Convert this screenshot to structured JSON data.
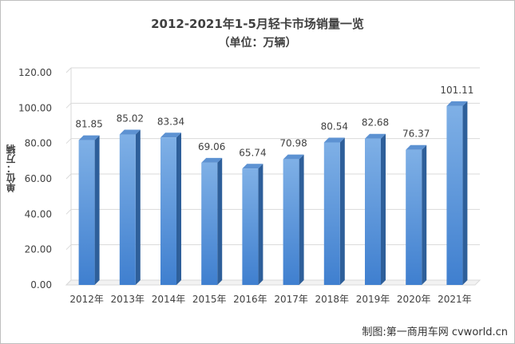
{
  "chart_data": {
    "type": "bar",
    "title": "2012-2021年1-5月轻卡市场销量一览",
    "subtitle": "（单位：万辆）",
    "ylabel": "单位：万辆",
    "xlabel": "",
    "categories": [
      "2012年",
      "2013年",
      "2014年",
      "2015年",
      "2016年",
      "2017年",
      "2018年",
      "2019年",
      "2020年",
      "2021年"
    ],
    "values": [
      81.85,
      85.02,
      83.34,
      69.06,
      65.74,
      70.98,
      80.54,
      82.68,
      76.37,
      101.11
    ],
    "data_labels": [
      "81.85",
      "85.02",
      "83.34",
      "69.06",
      "65.74",
      "70.98",
      "80.54",
      "82.68",
      "76.37",
      "101.11"
    ],
    "ylim": [
      0,
      120
    ],
    "yticks": [
      "0.00",
      "20.00",
      "40.00",
      "60.00",
      "80.00",
      "100.00",
      "120.00"
    ],
    "grid": true,
    "legend": "none",
    "colors": {
      "bar_front_top": "#7fb0e6",
      "bar_front_bottom": "#3f7fcf",
      "bar_side": "#2e5f9a",
      "bar_top": "#5d92d2",
      "grid": "#d9d9d9",
      "axis_text": "#404040"
    }
  },
  "footer": {
    "credit": "制图:第一商用车网 cvworld.cn"
  }
}
